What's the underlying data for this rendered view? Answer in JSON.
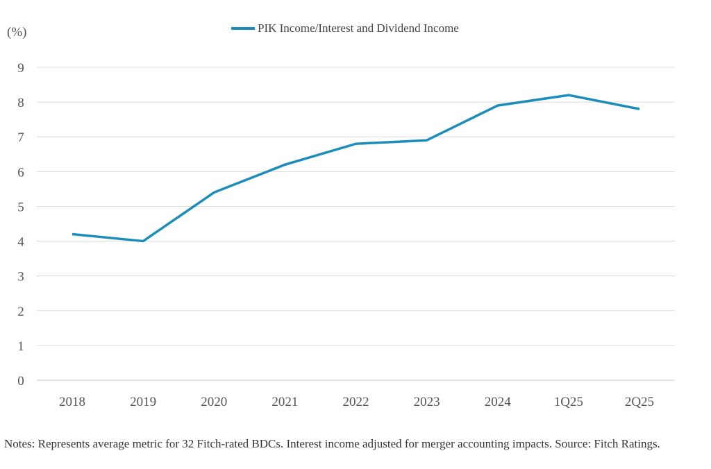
{
  "chart_data": {
    "type": "line",
    "title": "",
    "xlabel": "",
    "ylabel": "(%)",
    "categories": [
      "2018",
      "2019",
      "2020",
      "2021",
      "2022",
      "2023",
      "2024",
      "1Q25",
      "2Q25"
    ],
    "series": [
      {
        "name": "PIK Income/Interest and Dividend Income",
        "color": "#1a8dba",
        "values": [
          4.2,
          4.0,
          5.4,
          6.2,
          6.8,
          6.9,
          7.9,
          8.2,
          7.8
        ]
      }
    ],
    "ylim": [
      0,
      9
    ],
    "yticks": [
      "0",
      "1",
      "2",
      "3",
      "4",
      "5",
      "6",
      "7",
      "8",
      "9"
    ],
    "grid": true,
    "legend_position": "top-center"
  },
  "notes": "Notes: Represents average metric for 32 Fitch-rated BDCs. Interest income adjusted for merger accounting impacts. Source: Fitch Ratings."
}
